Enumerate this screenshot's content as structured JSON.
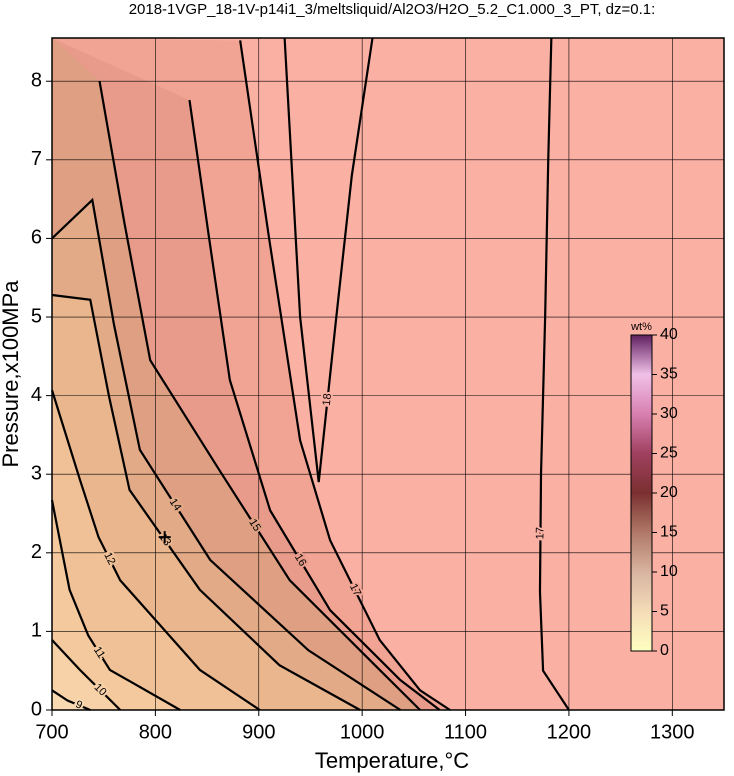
{
  "chart_data": {
    "type": "contour",
    "title": "2018-1VGP_18-1V-p14i1_3/meltsliquid/Al2O3/H2O_5.2_C1.000_3_PT, dz=0.1:",
    "xlabel": "Temperature,°C",
    "ylabel": "Pressure,x100MPa",
    "xlim": [
      700,
      1350
    ],
    "ylim": [
      0,
      8.55
    ],
    "xticks": [
      700,
      800,
      900,
      1000,
      1100,
      1200,
      1300
    ],
    "yticks": [
      0,
      1,
      2,
      3,
      4,
      5,
      6,
      7,
      8
    ],
    "grid": true,
    "background": "#fbb0a4",
    "contours": [
      {
        "level": 17,
        "x": [
          1183,
          1180,
          1177,
          1173,
          1172,
          1175,
          1200
        ],
        "y": [
          8.55,
          7,
          5,
          3,
          1.5,
          0.5,
          0
        ]
      },
      {
        "level": 18,
        "x": [
          925,
          940,
          958,
          975,
          990,
          1010
        ],
        "y": [
          8.55,
          5.0,
          2.9,
          5.0,
          6.8,
          8.55
        ]
      },
      {
        "level": 17,
        "x": [
          882,
          910,
          940,
          969,
          1017,
          1056,
          1085
        ],
        "y": [
          8.52,
          6.0,
          3.43,
          2.16,
          0.89,
          0.25,
          0
        ],
        "fill": "#f2a494"
      },
      {
        "level": 16,
        "x": [
          833,
          852,
          872,
          911,
          969,
          1037,
          1075
        ],
        "y": [
          7.76,
          6.0,
          4.2,
          2.54,
          1.27,
          0.38,
          0
        ],
        "fill": "#e89b8a"
      },
      {
        "level": 15,
        "x": [
          746,
          770,
          795,
          862,
          930,
          1017,
          1056
        ],
        "y": [
          8.0,
          6.2,
          4.45,
          3.05,
          1.65,
          0.51,
          0
        ],
        "fill": "#df9f82"
      },
      {
        "level": 14,
        "x": [
          700,
          739,
          760,
          785,
          853,
          948,
          1037
        ],
        "y": [
          6.0,
          6.49,
          4.9,
          3.31,
          1.91,
          0.76,
          0
        ],
        "fill": "#e2aa86"
      },
      {
        "level": 13,
        "x": [
          700,
          737,
          755,
          775,
          843,
          920,
          998
        ],
        "y": [
          5.28,
          5.22,
          4.0,
          2.8,
          1.53,
          0.57,
          0
        ],
        "fill": "#e9b68e"
      },
      {
        "level": 12,
        "x": [
          700,
          727,
          745,
          766,
          843,
          901
        ],
        "y": [
          4.07,
          2.93,
          2.2,
          1.65,
          0.51,
          0
        ],
        "fill": "#f0c096"
      },
      {
        "level": 11,
        "x": [
          700,
          717,
          735,
          756,
          824
        ],
        "y": [
          2.67,
          1.53,
          0.95,
          0.51,
          0
        ],
        "fill": "#f4c99e"
      },
      {
        "level": 10,
        "x": [
          700,
          727,
          766
        ],
        "y": [
          0.89,
          0.51,
          0
        ],
        "fill": "#f7d1a7"
      },
      {
        "level": 9,
        "x": [
          700,
          715,
          737
        ],
        "y": [
          0.25,
          0.12,
          0
        ],
        "fill": "#f9d9b1"
      }
    ],
    "marker": {
      "x": 809,
      "y": 2.2
    },
    "colorbar": {
      "label": "wt%",
      "lim": [
        0,
        40
      ],
      "ticks": [
        0,
        5,
        10,
        15,
        20,
        25,
        30,
        35,
        40
      ],
      "colors": [
        "#ffffc0",
        "#f4dcb8",
        "#d8b4a0",
        "#b07868",
        "#7a3030",
        "#a04060",
        "#d880b0",
        "#f0c0e8",
        "#602060"
      ]
    }
  }
}
